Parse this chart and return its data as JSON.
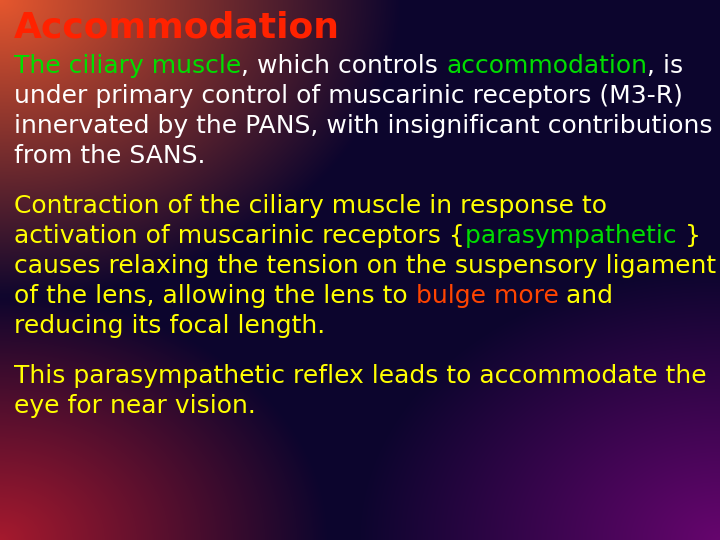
{
  "title": "Accommodation",
  "title_color": "#ff2200",
  "font_size_title": 26,
  "font_size_body": 18,
  "fig_width": 7.2,
  "fig_height": 5.4,
  "dpi": 100,
  "p1_lines": [
    [
      [
        "The ciliary muscle",
        "#00dd00"
      ],
      [
        ", which controls ",
        "#ffffff"
      ],
      [
        "accommodation",
        "#00dd00"
      ],
      [
        ", is",
        "#ffffff"
      ]
    ],
    [
      [
        "under primary control of muscarinic receptors (M3-R)",
        "#ffffff"
      ]
    ],
    [
      [
        "innervated by the PANS, with insignificant contributions",
        "#ffffff"
      ]
    ],
    [
      [
        "from the SANS.",
        "#ffffff"
      ]
    ]
  ],
  "p2_lines": [
    [
      [
        "Contraction of the ciliary muscle in response to",
        "#ffff00"
      ]
    ],
    [
      [
        "activation of muscarinic receptors {",
        "#ffff00"
      ],
      [
        "parasympathetic ",
        "#00dd00"
      ],
      [
        "}",
        "#ffff00"
      ]
    ],
    [
      [
        "causes relaxing the tension on the suspensory ligament",
        "#ffff00"
      ]
    ],
    [
      [
        "of the lens, allowing the lens to ",
        "#ffff00"
      ],
      [
        "bulge more",
        "#ff4400"
      ],
      [
        " and",
        "#ffff00"
      ]
    ],
    [
      [
        "reducing its focal length.",
        "#ffff00"
      ]
    ]
  ],
  "p3_lines": [
    [
      [
        "This parasympathetic reflex leads to accommodate the",
        "#ffff00"
      ]
    ],
    [
      [
        "eye for near vision.",
        "#ffff00"
      ]
    ]
  ]
}
